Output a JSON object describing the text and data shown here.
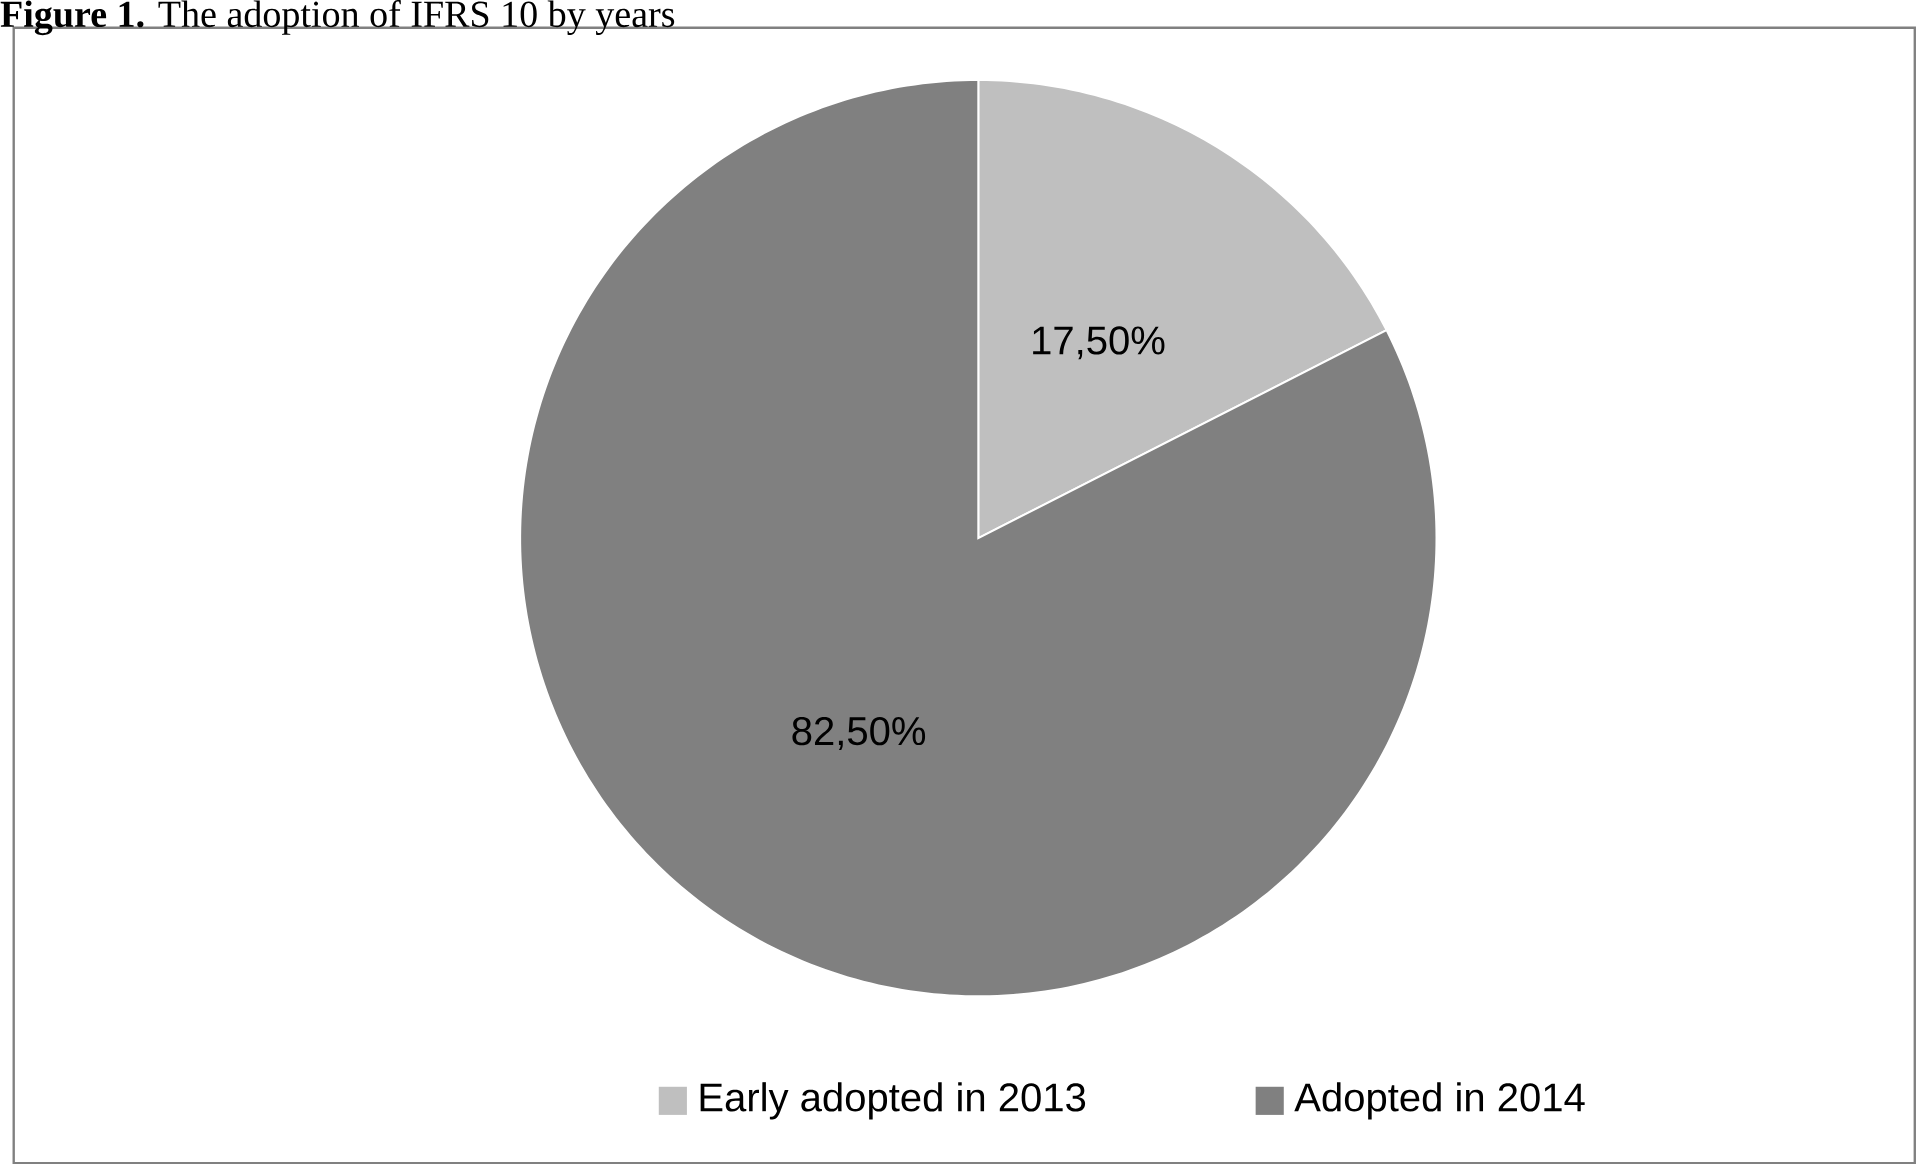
{
  "chart_data": {
    "type": "pie",
    "title": "**Figure 1.** The adoption of IFRS 10 by years",
    "categories": [
      "Early adopted in 2013",
      "Adopted in 2014"
    ],
    "values": [
      17.5,
      82.5
    ],
    "colors": [
      "#bfbfbf",
      "#808080"
    ],
    "value_labels": [
      "17,50%",
      "82,50%"
    ],
    "legend": "bottom"
  }
}
